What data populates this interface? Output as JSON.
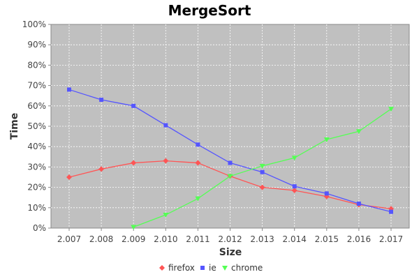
{
  "chart_data": {
    "type": "line",
    "title": "MergeSort",
    "xlabel": "Size",
    "ylabel": "Time",
    "categories": [
      "2.007",
      "2.008",
      "2.009",
      "2.010",
      "2.011",
      "2.012",
      "2.013",
      "2.014",
      "2.015",
      "2.016",
      "2.017"
    ],
    "y_ticks": [
      "0%",
      "10%",
      "20%",
      "30%",
      "40%",
      "50%",
      "60%",
      "70%",
      "80%",
      "90%",
      "100%"
    ],
    "ylim": [
      0,
      100
    ],
    "grid": true,
    "legend_position": "bottom",
    "plot_background": "#c0c0c0",
    "series": [
      {
        "name": "firefox",
        "color": "#ff5555",
        "marker": "diamond",
        "values": [
          25,
          29,
          32,
          33,
          32,
          25.5,
          20,
          18.5,
          15.5,
          11.5,
          9.5
        ]
      },
      {
        "name": "ie",
        "color": "#5555ff",
        "marker": "square",
        "values": [
          68,
          63,
          60,
          50.5,
          41,
          32,
          27.5,
          20.5,
          17,
          12,
          8
        ]
      },
      {
        "name": "chrome",
        "color": "#55ff55",
        "marker": "triangle-down",
        "values": [
          null,
          null,
          0.5,
          6.5,
          14.5,
          25.5,
          30.5,
          34.5,
          43.5,
          47.5,
          58.5
        ]
      }
    ]
  }
}
